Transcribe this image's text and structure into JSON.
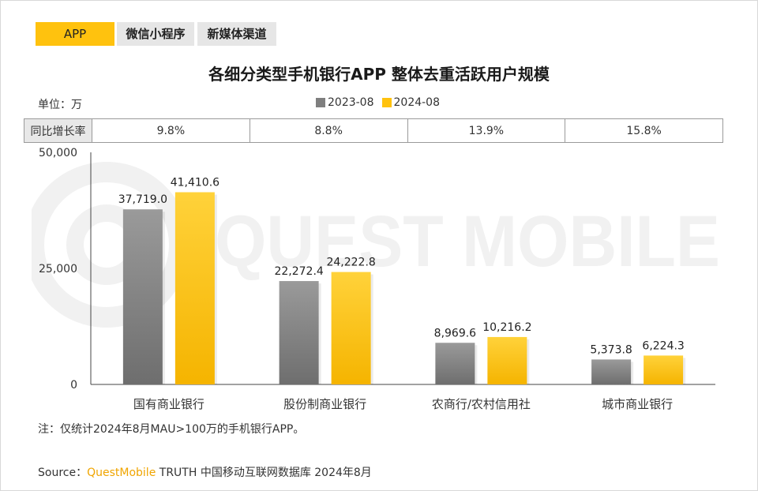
{
  "tabs": [
    {
      "label": "APP",
      "active": true
    },
    {
      "label": "微信小程序",
      "active": false
    },
    {
      "label": "新媒体渠道",
      "active": false
    }
  ],
  "unit_label": "单位：万",
  "yoy": {
    "row_label": "同比增长率",
    "values": [
      "9.8%",
      "8.8%",
      "13.9%",
      "15.8%"
    ]
  },
  "watermark": "QUEST MOBILE",
  "note": "注：仅统计2024年8月MAU>100万的手机银行APP。",
  "source": {
    "prefix": "Source：",
    "brand": "QuestMobile",
    "rest": " TRUTH 中国移动互联网数据库 2024年8月"
  },
  "colors": {
    "series_2023": "#7f7f7f",
    "series_2024": "#ffc20e",
    "tab_active": "#ffc20e",
    "brand": "#f0a500"
  },
  "chart_data": {
    "type": "bar",
    "title": "各细分类型手机银行APP 整体去重活跃用户规模",
    "categories": [
      "国有商业银行",
      "股份制商业银行",
      "农商行/农村信用社",
      "城市商业银行"
    ],
    "series": [
      {
        "name": "2023-08",
        "values": [
          37719.0,
          22272.4,
          8969.6,
          5373.8
        ],
        "labels": [
          "37,719.0",
          "22,272.4",
          "8,969.6",
          "5,373.8"
        ]
      },
      {
        "name": "2024-08",
        "values": [
          41410.6,
          24222.8,
          10216.2,
          6224.3
        ],
        "labels": [
          "41,410.6",
          "24,222.8",
          "10,216.2",
          "6,224.3"
        ]
      }
    ],
    "ylim": [
      0,
      50000
    ],
    "yticks": [
      0,
      25000,
      50000
    ],
    "ytick_labels": [
      "0",
      "25,000",
      "50,000"
    ],
    "legend_position": "top-center",
    "grid": false
  }
}
